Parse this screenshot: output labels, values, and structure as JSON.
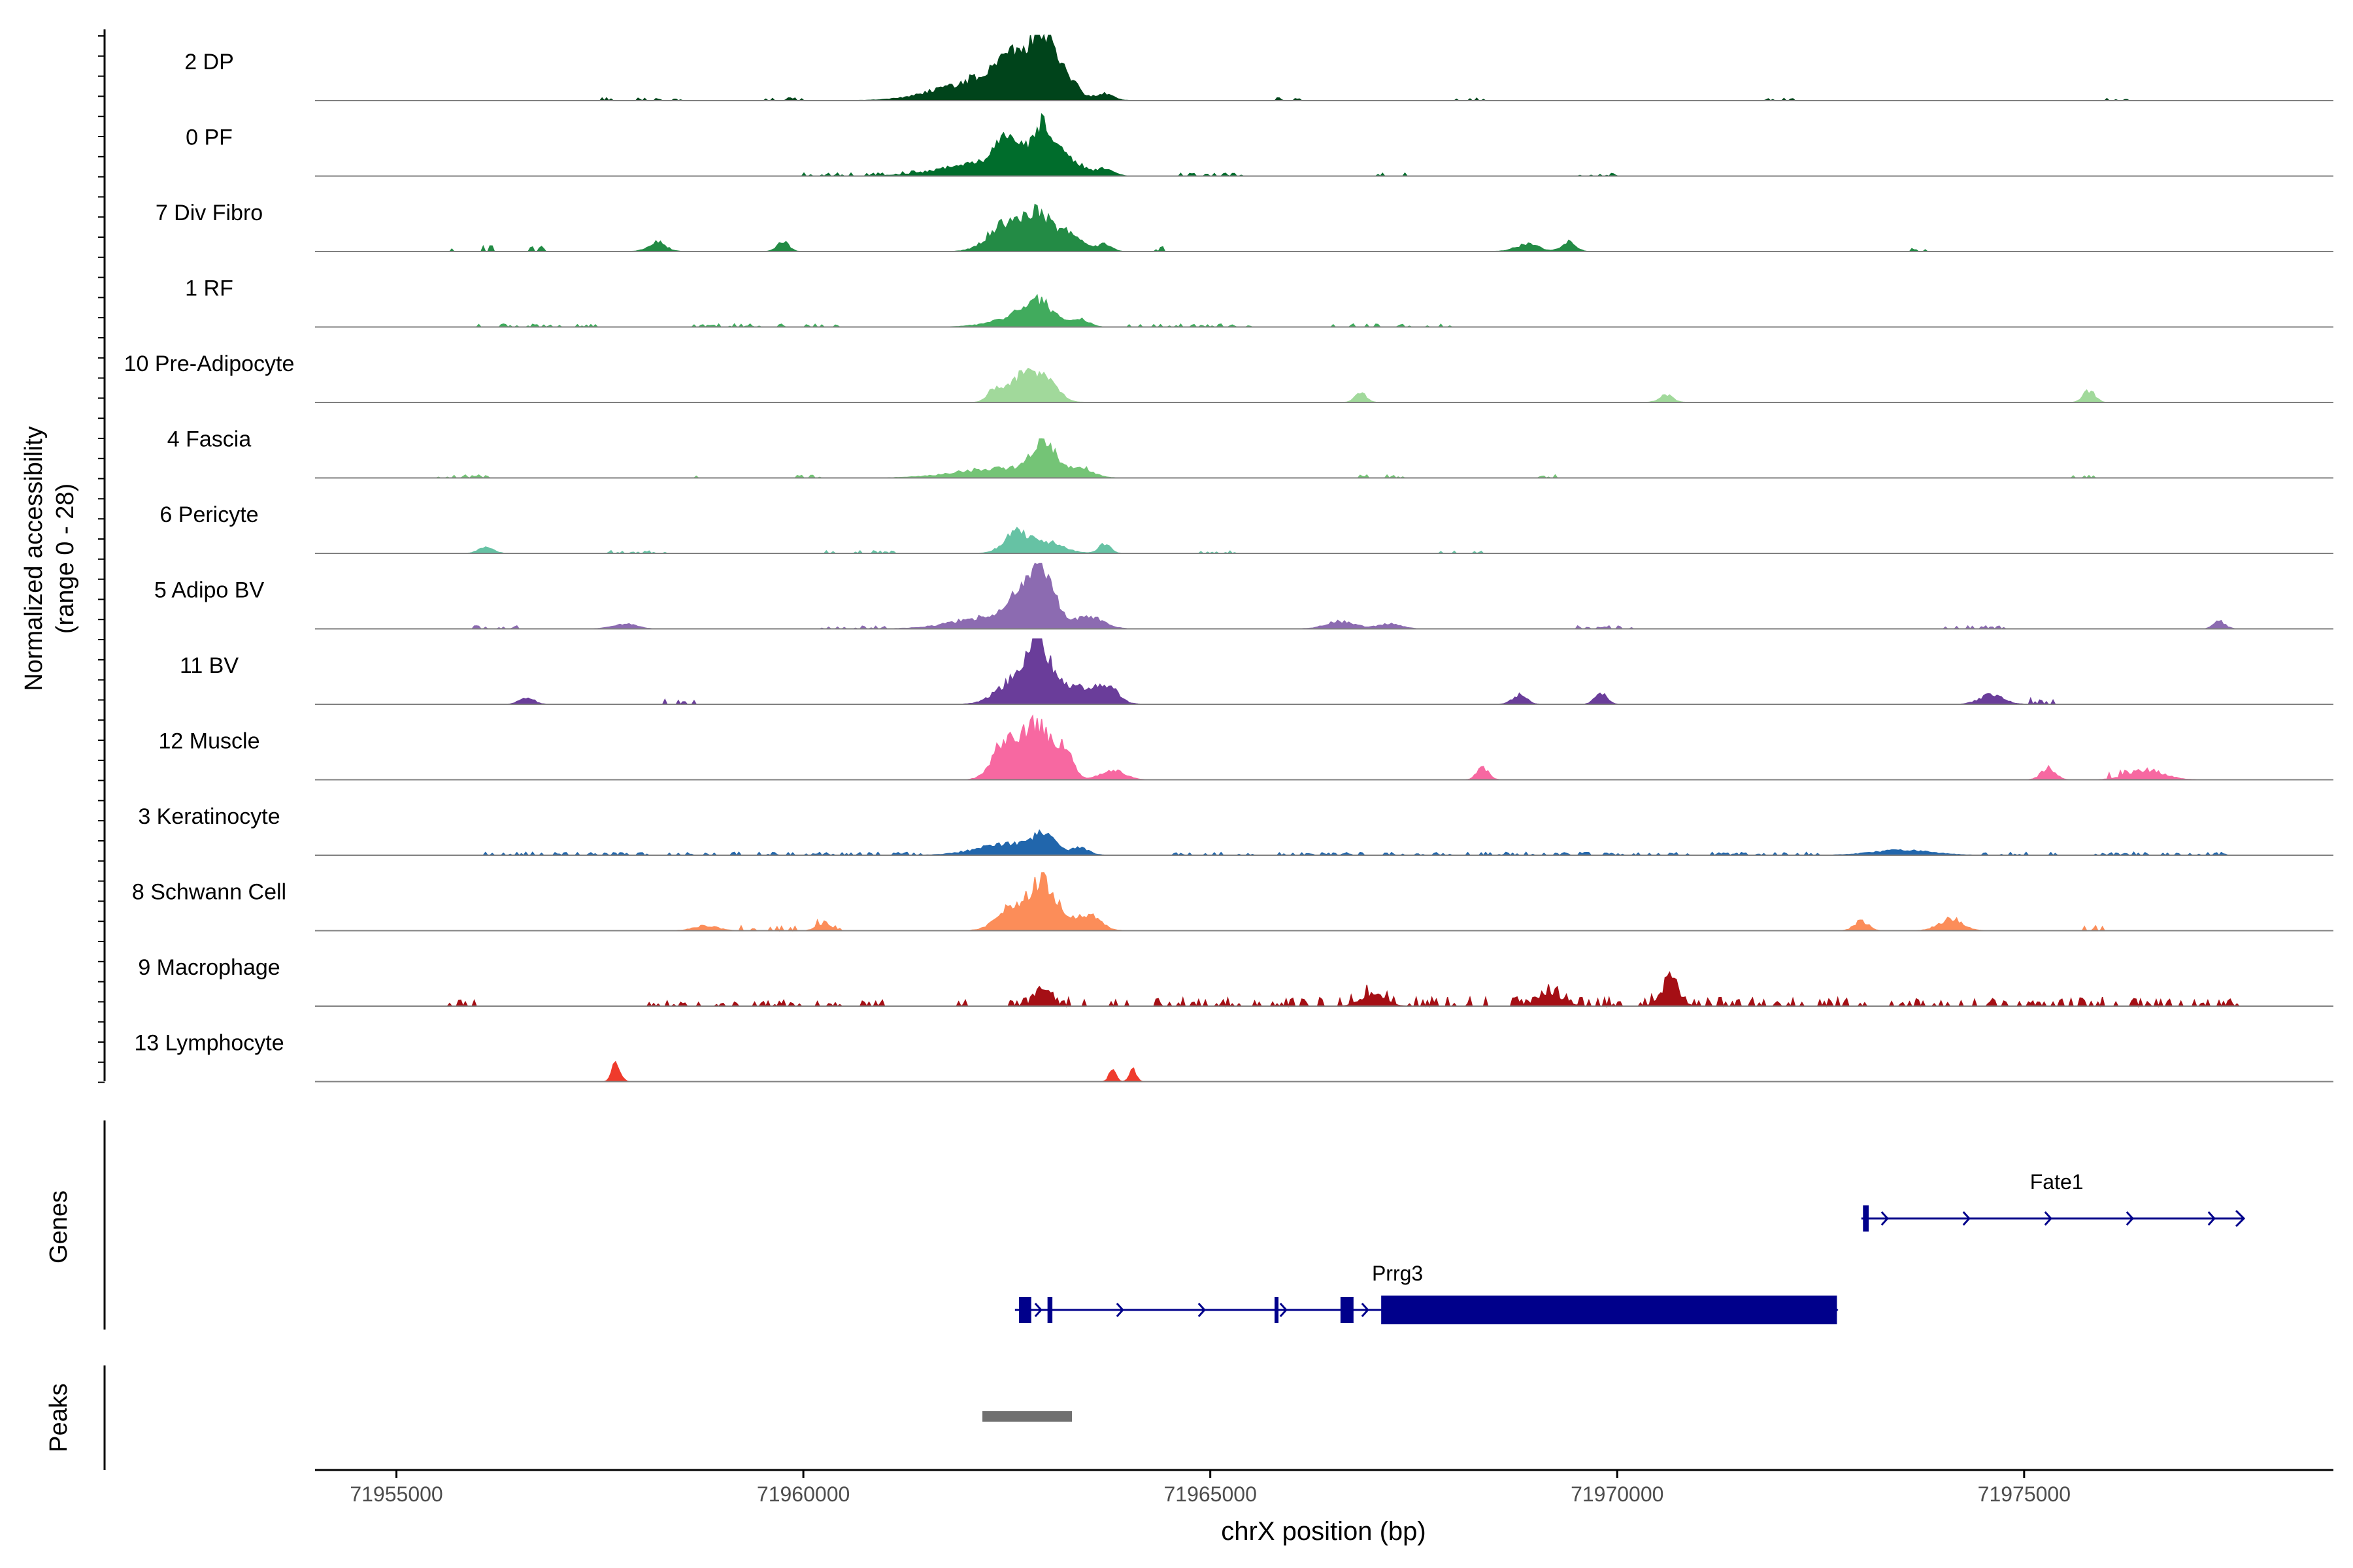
{
  "chart_data": {
    "type": "area",
    "title": "",
    "xlabel": "chrX position (bp)",
    "ylabel": "Normalized accessibility",
    "ylabel_range": "(range 0 - 28)",
    "xlim": [
      71954000,
      71978800
    ],
    "ylim": [
      0,
      28
    ],
    "x_ticks": [
      71955000,
      71960000,
      71965000,
      71970000,
      71975000
    ],
    "x_tick_labels": [
      "71955000",
      "71960000",
      "71965000",
      "71970000",
      "71975000"
    ],
    "series": [
      {
        "name": "2 DP",
        "color": "#00441B",
        "peaks": [
          [
            71962200,
            700,
            9
          ],
          [
            71962550,
            260,
            14
          ],
          [
            71962950,
            200,
            26
          ],
          [
            71963250,
            180,
            8
          ],
          [
            71963700,
            150,
            3
          ]
        ],
        "noise": [
          [
            71957500,
            71958500,
            1
          ],
          [
            71959500,
            71960000,
            1
          ],
          [
            71965800,
            71966200,
            1
          ],
          [
            71968000,
            71968400,
            1
          ],
          [
            71971800,
            71972200,
            1
          ],
          [
            71976000,
            71976400,
            1
          ]
        ]
      },
      {
        "name": "0 PF",
        "color": "#006D2C",
        "peaks": [
          [
            71962200,
            700,
            5
          ],
          [
            71962500,
            220,
            12
          ],
          [
            71962950,
            200,
            20
          ],
          [
            71963300,
            200,
            6
          ],
          [
            71963700,
            150,
            3
          ]
        ],
        "noise": [
          [
            71960000,
            71961400,
            1
          ],
          [
            71964600,
            71965400,
            1
          ],
          [
            71967000,
            71967500,
            1
          ],
          [
            71969500,
            71970000,
            1
          ]
        ]
      },
      {
        "name": "7 Div Fibro",
        "color": "#238B45",
        "peaks": [
          [
            71962500,
            300,
            12
          ],
          [
            71962900,
            250,
            14
          ],
          [
            71963300,
            200,
            7
          ],
          [
            71963700,
            120,
            3
          ],
          [
            71958200,
            150,
            4
          ],
          [
            71959750,
            100,
            4
          ],
          [
            71968900,
            200,
            3
          ],
          [
            71969400,
            120,
            4
          ]
        ],
        "noise": [
          [
            71955600,
            71956200,
            2
          ],
          [
            71956600,
            71956900,
            2
          ],
          [
            71964200,
            71964600,
            2
          ],
          [
            71973600,
            71973800,
            2
          ],
          [
            71977600,
            71977700,
            2
          ]
        ]
      },
      {
        "name": "1 RF",
        "color": "#41AB5D",
        "peaks": [
          [
            71962600,
            400,
            4
          ],
          [
            71962900,
            250,
            9
          ],
          [
            71963400,
            150,
            3
          ]
        ],
        "noise": [
          [
            71956000,
            71957500,
            1
          ],
          [
            71958500,
            71960500,
            1
          ],
          [
            71964000,
            71965500,
            1
          ],
          [
            71966500,
            71968000,
            1
          ]
        ]
      },
      {
        "name": "10 Pre-Adipocyte",
        "color": "#A1D99B",
        "peaks": [
          [
            71962350,
            120,
            5
          ],
          [
            71962700,
            250,
            11
          ],
          [
            71963000,
            200,
            8
          ],
          [
            71966850,
            100,
            4
          ],
          [
            71970600,
            120,
            3
          ],
          [
            71975800,
            100,
            5
          ]
        ],
        "noise": [
          [
            71970900,
            71971000,
            2
          ]
        ]
      },
      {
        "name": "4 Fascia",
        "color": "#74C476",
        "peaks": [
          [
            71962400,
            700,
            4
          ],
          [
            71962950,
            200,
            14
          ],
          [
            71963400,
            200,
            4
          ]
        ],
        "noise": [
          [
            71955500,
            71956200,
            1
          ],
          [
            71958300,
            71958700,
            1
          ],
          [
            71959800,
            71960200,
            1
          ],
          [
            71966800,
            71967400,
            1
          ],
          [
            71969000,
            71969400,
            1
          ],
          [
            71975600,
            71976000,
            1
          ]
        ]
      },
      {
        "name": "6 Pericyte",
        "color": "#66C2A4",
        "peaks": [
          [
            71962600,
            200,
            8
          ],
          [
            71962950,
            300,
            5
          ],
          [
            71963700,
            100,
            4
          ],
          [
            71956100,
            120,
            3
          ]
        ],
        "noise": [
          [
            71957600,
            71958300,
            1
          ],
          [
            71960200,
            71961200,
            1
          ],
          [
            71964800,
            71965400,
            1
          ],
          [
            71967800,
            71968400,
            1
          ]
        ]
      },
      {
        "name": "5 Adipo BV",
        "color": "#8C6BB1",
        "peaks": [
          [
            71962300,
            600,
            5
          ],
          [
            71962700,
            250,
            12
          ],
          [
            71962950,
            200,
            20
          ],
          [
            71963500,
            250,
            5
          ],
          [
            71957800,
            200,
            2
          ],
          [
            71966600,
            250,
            3
          ],
          [
            71967200,
            200,
            2
          ],
          [
            71977400,
            100,
            3
          ]
        ],
        "noise": [
          [
            71955800,
            71956500,
            1
          ],
          [
            71960200,
            71961000,
            1
          ],
          [
            71969500,
            71970200,
            1
          ],
          [
            71974000,
            71974800,
            1
          ]
        ]
      },
      {
        "name": "11 BV",
        "color": "#6A3D9A",
        "peaks": [
          [
            71962600,
            300,
            10
          ],
          [
            71962900,
            200,
            24
          ],
          [
            71963300,
            200,
            8
          ],
          [
            71963700,
            200,
            9
          ],
          [
            71969800,
            100,
            5
          ],
          [
            71968800,
            120,
            4
          ],
          [
            71974600,
            200,
            4
          ],
          [
            71956600,
            120,
            3
          ]
        ],
        "noise": [
          [
            71958200,
            71958700,
            2
          ],
          [
            71975000,
            71975400,
            2
          ]
        ]
      },
      {
        "name": "12 Muscle",
        "color": "#F768A1",
        "peaks": [
          [
            71962450,
            200,
            14
          ],
          [
            71962850,
            250,
            24
          ],
          [
            71963200,
            150,
            11
          ],
          [
            71963800,
            200,
            4
          ],
          [
            71968350,
            100,
            5
          ],
          [
            71975300,
            120,
            5
          ],
          [
            71976500,
            300,
            4
          ]
        ],
        "noise": [
          [
            71976000,
            71976300,
            2
          ]
        ]
      },
      {
        "name": "3 Keratinocyte",
        "color": "#2166AC",
        "peaks": [
          [
            71962500,
            500,
            5
          ],
          [
            71962950,
            200,
            7
          ],
          [
            71963400,
            150,
            3
          ],
          [
            71973500,
            500,
            2
          ]
        ],
        "noise": [
          [
            71956000,
            71961500,
            1
          ],
          [
            71964500,
            71972500,
            1
          ],
          [
            71974500,
            71977500,
            1
          ]
        ]
      },
      {
        "name": "8 Schwann Cell",
        "color": "#FC8D59",
        "peaks": [
          [
            71962550,
            250,
            9
          ],
          [
            71962950,
            250,
            20
          ],
          [
            71963500,
            200,
            7
          ],
          [
            71973000,
            120,
            4
          ],
          [
            71974100,
            200,
            5
          ],
          [
            71960250,
            120,
            3
          ],
          [
            71958800,
            200,
            2
          ]
        ],
        "noise": [
          [
            71959200,
            71960500,
            2
          ],
          [
            71975500,
            71976200,
            2
          ]
        ]
      },
      {
        "name": "9 Macrophage",
        "color": "#A50F15",
        "peaks": [
          [
            71962950,
            120,
            8
          ],
          [
            71970650,
            150,
            10
          ],
          [
            71969200,
            200,
            5
          ],
          [
            71967000,
            200,
            5
          ]
        ],
        "noise": [
          [
            71955600,
            71956000,
            2
          ],
          [
            71958000,
            71961000,
            2
          ],
          [
            71961800,
            71962000,
            2
          ],
          [
            71962500,
            71977800,
            3
          ]
        ]
      },
      {
        "name": "13 Lymphocyte",
        "color": "#EF3B2C",
        "peaks": [
          [
            71957700,
            70,
            8
          ],
          [
            71963800,
            60,
            5
          ],
          [
            71964050,
            60,
            5
          ]
        ],
        "noise": []
      }
    ],
    "genes": [
      {
        "name": "Fate1",
        "start": 71973000,
        "end": 71977700,
        "strand": "+",
        "exons": [
          [
            71973020,
            71973090
          ]
        ],
        "thick": []
      },
      {
        "name": "Prrg3",
        "start": 71962600,
        "end": 71972700,
        "strand": "+",
        "exons": [
          [
            71962650,
            71962800
          ],
          [
            71963000,
            71963060
          ],
          [
            71965790,
            71965830
          ],
          [
            71966600,
            71966760
          ]
        ],
        "thick": [
          [
            71967100,
            71972700
          ]
        ]
      }
    ],
    "peaks_track": [
      [
        71962200,
        71963300
      ]
    ],
    "panels": {
      "genes_label": "Genes",
      "peaks_label": "Peaks"
    }
  }
}
